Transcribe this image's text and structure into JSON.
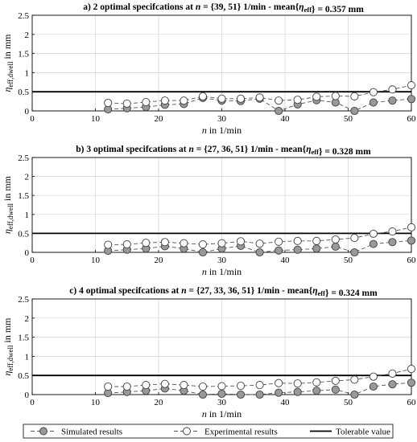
{
  "chart_data": [
    {
      "type": "scatter",
      "title_parts": [
        {
          "t": "a) 2 optimal specifcations at ",
          "style": "normal"
        },
        {
          "t": "n",
          "style": "italic"
        },
        {
          "t": " = {39, 51} 1/min - mean{",
          "style": "normal"
        },
        {
          "t": "η",
          "style": "italic"
        },
        {
          "t": "eff",
          "style": "sub"
        },
        {
          "t": "} = 0.357 mm",
          "style": "normal"
        }
      ],
      "xlim": [
        0,
        60
      ],
      "ylim": [
        0,
        2.5
      ],
      "xticks": [
        0,
        10,
        20,
        30,
        40,
        50,
        60
      ],
      "yticks": [
        0,
        0.5,
        1,
        1.5,
        2,
        2.5
      ],
      "yticklabels": [
        "0",
        "0.5",
        "1",
        "1.5",
        "2",
        "2.5"
      ],
      "x": [
        12,
        15,
        18,
        21,
        24,
        27,
        30,
        33,
        36,
        39,
        42,
        45,
        48,
        51,
        54,
        57,
        60
      ],
      "series": [
        {
          "name": "Simulated results",
          "values": [
            0.04,
            0.07,
            0.1,
            0.16,
            0.18,
            0.34,
            0.27,
            0.26,
            0.32,
            0.0,
            0.17,
            0.28,
            0.22,
            0.0,
            0.22,
            0.27,
            0.31
          ]
        },
        {
          "name": "Experimental results",
          "values": [
            0.21,
            0.19,
            0.23,
            0.27,
            0.27,
            0.38,
            0.32,
            0.32,
            0.35,
            0.27,
            0.29,
            0.37,
            0.39,
            0.38,
            0.49,
            0.56,
            0.67
          ]
        }
      ],
      "tolerable_value": 0.5
    },
    {
      "type": "scatter",
      "title_parts": [
        {
          "t": "b) 3 optimal specifcations at ",
          "style": "normal"
        },
        {
          "t": "n",
          "style": "italic"
        },
        {
          "t": " = {27, 36, 51} 1/min - mean{",
          "style": "normal"
        },
        {
          "t": "η",
          "style": "italic"
        },
        {
          "t": "eff",
          "style": "sub"
        },
        {
          "t": "} = 0.328 mm",
          "style": "normal"
        }
      ],
      "xlim": [
        0,
        60
      ],
      "ylim": [
        0,
        2.5
      ],
      "xticks": [
        0,
        10,
        20,
        30,
        40,
        50,
        60
      ],
      "yticks": [
        0,
        0.5,
        1,
        1.5,
        2,
        2.5
      ],
      "yticklabels": [
        "0",
        "0.5",
        "1",
        "1.5",
        "2",
        "2.5"
      ],
      "x": [
        12,
        15,
        18,
        21,
        24,
        27,
        30,
        33,
        36,
        39,
        42,
        45,
        48,
        51,
        54,
        57,
        60
      ],
      "series": [
        {
          "name": "Simulated results",
          "values": [
            0.04,
            0.07,
            0.1,
            0.16,
            0.1,
            0.0,
            0.1,
            0.17,
            0.0,
            0.05,
            0.07,
            0.1,
            0.15,
            0.0,
            0.22,
            0.27,
            0.31
          ]
        },
        {
          "name": "Experimental results",
          "values": [
            0.2,
            0.21,
            0.25,
            0.27,
            0.24,
            0.21,
            0.24,
            0.29,
            0.23,
            0.28,
            0.3,
            0.3,
            0.34,
            0.38,
            0.49,
            0.55,
            0.66
          ]
        }
      ],
      "tolerable_value": 0.5
    },
    {
      "type": "scatter",
      "title_parts": [
        {
          "t": "c) 4 optimal specifcations at ",
          "style": "normal"
        },
        {
          "t": "n",
          "style": "italic"
        },
        {
          "t": " = {27, 33, 36, 51} 1/min - mean{",
          "style": "normal"
        },
        {
          "t": "η",
          "style": "italic"
        },
        {
          "t": "eff",
          "style": "sub"
        },
        {
          "t": "} = 0.324 mm",
          "style": "normal"
        }
      ],
      "xlim": [
        0,
        60
      ],
      "ylim": [
        0,
        2.5
      ],
      "xticks": [
        0,
        10,
        20,
        30,
        40,
        50,
        60
      ],
      "yticks": [
        0,
        0.5,
        1,
        1.5,
        2,
        2.5
      ],
      "yticklabels": [
        "0",
        "0.5",
        "1",
        "1.5",
        "2",
        "2.5"
      ],
      "x": [
        12,
        15,
        18,
        21,
        24,
        27,
        30,
        33,
        36,
        39,
        42,
        45,
        48,
        51,
        54,
        57,
        60
      ],
      "series": [
        {
          "name": "Simulated results",
          "values": [
            0.04,
            0.07,
            0.1,
            0.16,
            0.1,
            0.0,
            0.02,
            0.0,
            0.0,
            0.05,
            0.07,
            0.1,
            0.13,
            0.0,
            0.21,
            0.27,
            0.31
          ]
        },
        {
          "name": "Experimental results",
          "values": [
            0.21,
            0.21,
            0.25,
            0.28,
            0.25,
            0.21,
            0.22,
            0.23,
            0.25,
            0.3,
            0.29,
            0.32,
            0.36,
            0.39,
            0.47,
            0.55,
            0.67
          ]
        }
      ],
      "tolerable_value": 0.5
    }
  ],
  "axis_labels": {
    "x_var": "n",
    "x_unit": " in 1/min",
    "y_var": "η",
    "y_sub": "eff,dwell",
    "y_unit": " in mm"
  },
  "legend": {
    "simulated": "Simulated results",
    "experimental": "Experimental results",
    "tolerable": "Tolerable value"
  },
  "colors": {
    "simulated_fill": "#999999",
    "experimental_fill": "#ffffff",
    "marker_stroke": "#404040",
    "dash_line": "#555555",
    "tolerable_line": "#000000",
    "grid": "#d4d4d4"
  }
}
